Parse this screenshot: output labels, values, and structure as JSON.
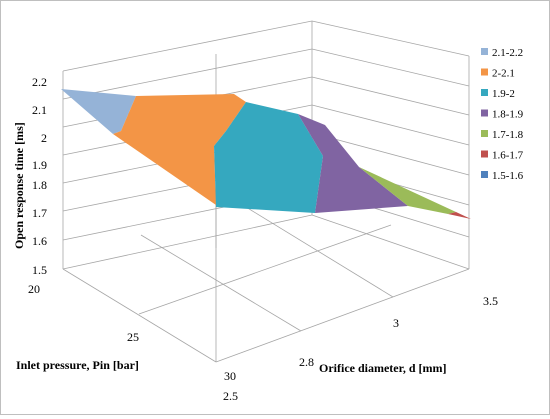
{
  "chart_data": {
    "type": "surface",
    "title": "",
    "zlabel": "Open response time [ms]",
    "xlabel": "Inlet pressure, Pin [bar]",
    "ylabel": "Orifice diameter, d [mm]",
    "z_ticks": [
      "1.5",
      "1.6",
      "1.7",
      "1.8",
      "1.9",
      "2",
      "2.1",
      "2.2"
    ],
    "x_ticks": [
      "20",
      "25",
      "30"
    ],
    "y_ticks": [
      "2.5",
      "2.8",
      "3",
      "3.5"
    ],
    "zlim": [
      1.5,
      2.2
    ],
    "grid": true,
    "legend_position": "right",
    "legend": [
      {
        "label": "2.1-2.2",
        "color": "#95b3d7"
      },
      {
        "label": "2-2.1",
        "color": "#f39546"
      },
      {
        "label": "1.9-2",
        "color": "#35a8bf"
      },
      {
        "label": "1.8-1.9",
        "color": "#8064a2"
      },
      {
        "label": "1.7-1.8",
        "color": "#9bbb59"
      },
      {
        "label": "1.6-1.7",
        "color": "#c0504d"
      },
      {
        "label": "1.5-1.6",
        "color": "#4f81bd"
      }
    ],
    "surface_bands": [
      {
        "range": "2.1-2.2",
        "approx_location": "low diameter, low pressure"
      },
      {
        "range": "2-2.1",
        "approx_location": "low diameter"
      },
      {
        "range": "1.9-2",
        "approx_location": "middle"
      },
      {
        "range": "1.8-1.9",
        "approx_location": "middle-high diameter"
      },
      {
        "range": "1.7-1.8",
        "approx_location": "high diameter"
      },
      {
        "range": "1.6-1.7",
        "approx_location": "highest diameter, high pressure"
      }
    ]
  }
}
